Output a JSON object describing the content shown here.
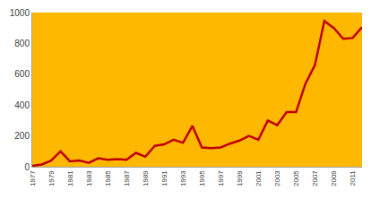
{
  "chart_data": {
    "type": "line",
    "x": [
      1977,
      1978,
      1979,
      1980,
      1981,
      1982,
      1983,
      1984,
      1985,
      1986,
      1987,
      1988,
      1989,
      1990,
      1991,
      1992,
      1993,
      1994,
      1995,
      1996,
      1997,
      1998,
      1999,
      2000,
      2001,
      2002,
      2003,
      2004,
      2005,
      2006,
      2007,
      2008,
      2009,
      2010,
      2011,
      2012
    ],
    "values": [
      5,
      15,
      40,
      100,
      35,
      40,
      25,
      55,
      45,
      50,
      45,
      90,
      65,
      135,
      145,
      175,
      155,
      265,
      125,
      120,
      125,
      150,
      170,
      200,
      175,
      300,
      270,
      355,
      355,
      540,
      660,
      945,
      900,
      830,
      835,
      905
    ],
    "color": "#c00000",
    "xlim": [
      1977,
      2012
    ],
    "xticks": [
      1977,
      1979,
      1981,
      1983,
      1985,
      1987,
      1989,
      1991,
      1993,
      1995,
      1997,
      1999,
      2001,
      2003,
      2005,
      2007,
      2009,
      2011
    ],
    "ylim": [
      0,
      1000
    ],
    "yticks": [
      0,
      200,
      400,
      600,
      800,
      1000
    ],
    "grid": false
  }
}
